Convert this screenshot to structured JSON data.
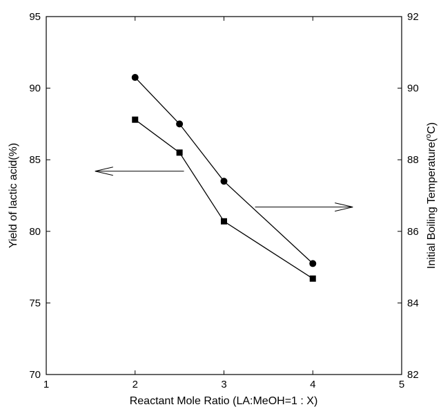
{
  "chart_data": {
    "type": "line",
    "title": "",
    "xlabel": "Reactant Mole Ratio (LA:MeOH=1 : X)",
    "ylabel_left": "Yield of lactic acid(%)",
    "ylabel_right_pre": "Initial Boiling Temperature(",
    "ylabel_right_sup": "o",
    "ylabel_right_post": "C)",
    "xlim": [
      1,
      5
    ],
    "ylim_left": [
      70,
      95
    ],
    "ylim_right": [
      82,
      92
    ],
    "x_ticks": [
      "1",
      "2",
      "3",
      "4",
      "5"
    ],
    "y_left_ticks": [
      "70",
      "75",
      "80",
      "85",
      "90",
      "95"
    ],
    "y_right_ticks": [
      "82",
      "84",
      "86",
      "88",
      "90",
      "92"
    ],
    "grid": false,
    "series": [
      {
        "axis": "left",
        "marker": "square",
        "x": [
          2,
          2.5,
          3,
          4
        ],
        "y": [
          87.8,
          85.5,
          80.7,
          76.7
        ]
      },
      {
        "axis": "right",
        "marker": "circle",
        "x": [
          2,
          2.5,
          3,
          4
        ],
        "y": [
          90.3,
          89.0,
          87.4,
          85.1
        ]
      }
    ],
    "annotations": [
      {
        "type": "arrow",
        "direction": "left",
        "points_to": "left-axis",
        "x_from": 2.55,
        "x_to": 1.55,
        "y_left": 84.2
      },
      {
        "type": "arrow",
        "direction": "right",
        "points_to": "right-axis",
        "x_from": 3.35,
        "x_to": 4.45,
        "y_left": 81.7
      }
    ]
  }
}
